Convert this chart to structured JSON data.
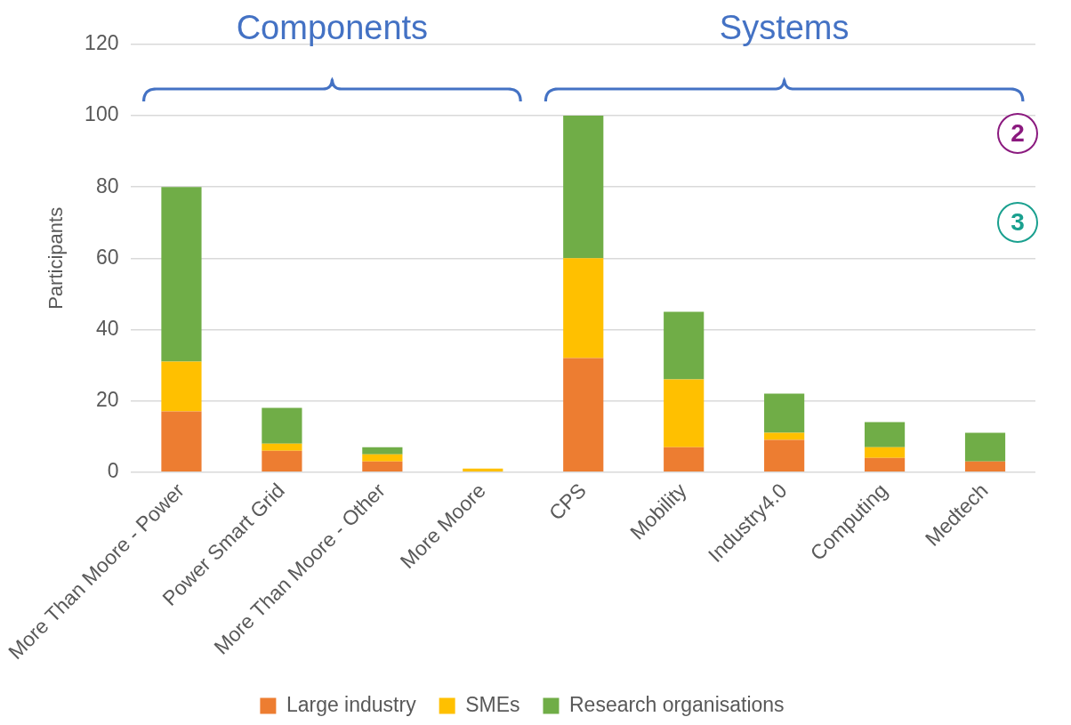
{
  "chart_data": {
    "type": "bar",
    "stacked": true,
    "ylabel": "Participants",
    "categories": [
      "More Than Moore - Power",
      "Power Smart Grid",
      "More Than Moore - Other",
      "More Moore",
      "CPS",
      "Mobility",
      "Industry4.0",
      "Computing",
      "Medtech"
    ],
    "series": [
      {
        "name": "Large industry",
        "color": "#ed7d31",
        "values": [
          17,
          6,
          3,
          0,
          32,
          7,
          9,
          4,
          3
        ]
      },
      {
        "name": "SMEs",
        "color": "#ffc000",
        "values": [
          14,
          2,
          2,
          1,
          28,
          19,
          2,
          3,
          0
        ]
      },
      {
        "name": "Research organisations",
        "color": "#70ad47",
        "values": [
          49,
          10,
          2,
          0,
          40,
          19,
          11,
          7,
          8
        ]
      }
    ],
    "ylim": [
      0,
      120
    ],
    "yticks": [
      0,
      20,
      40,
      60,
      80,
      100,
      120
    ],
    "grid": "y",
    "legend": "bottom",
    "annotations": [
      "Components",
      "Systems",
      "2",
      "3"
    ]
  }
}
